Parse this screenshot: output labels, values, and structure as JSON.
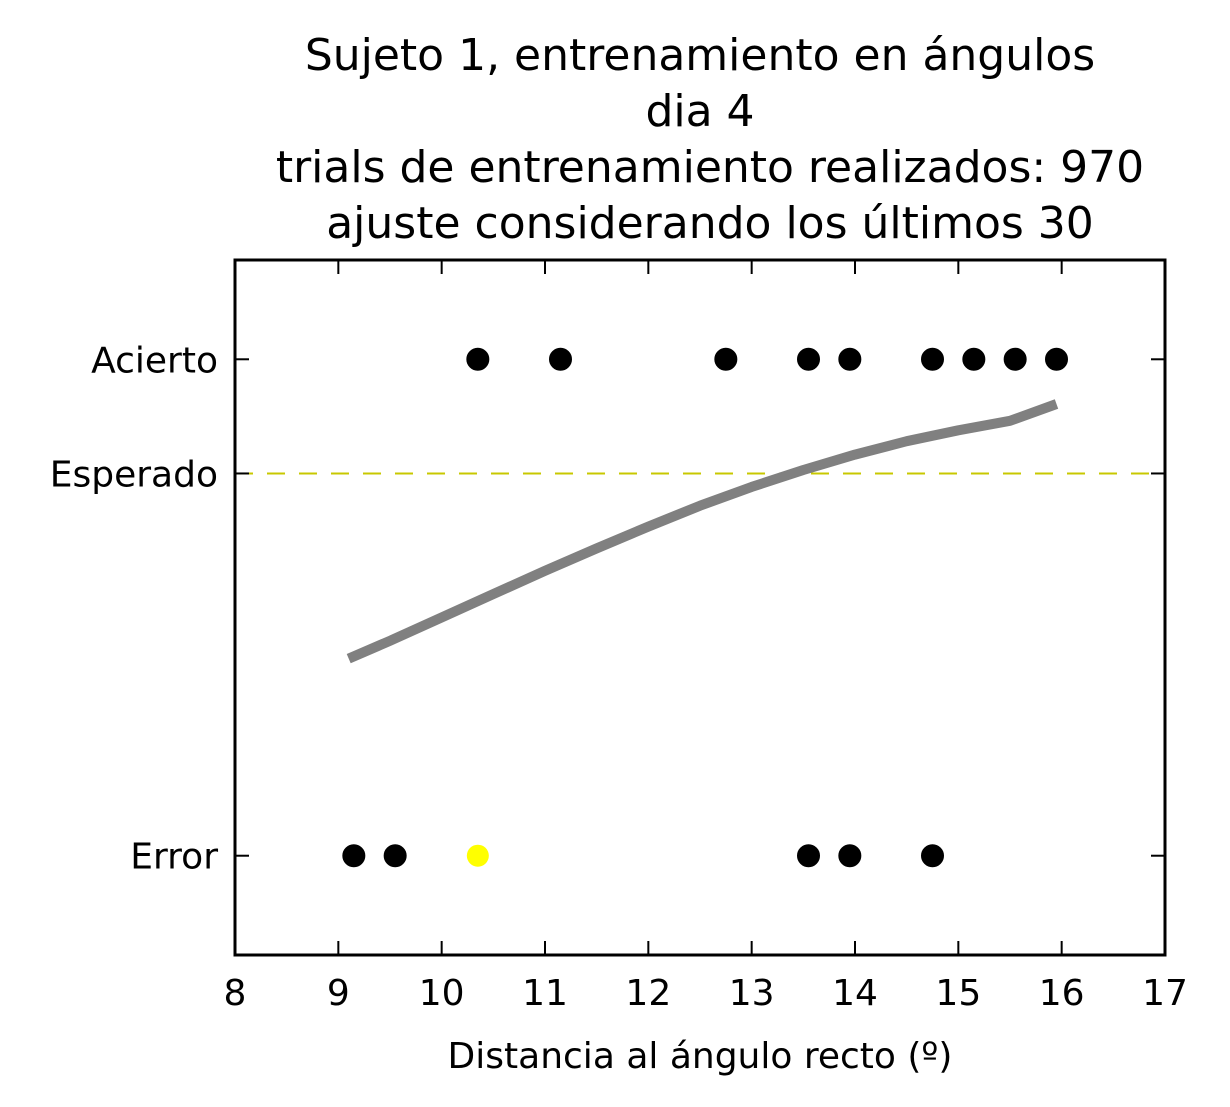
{
  "chart_data": {
    "type": "scatter",
    "title_lines": [
      "Sujeto 1, entrenamiento en ángulos",
      "dia 4",
      "trials de entrenamiento realizados: 970",
      "ajuste considerando los últimos 30"
    ],
    "xlabel": "Distancia al ángulo recto (º)",
    "ylabel": "",
    "xlim": [
      8,
      17
    ],
    "x_ticks": [
      8,
      9,
      10,
      11,
      12,
      13,
      14,
      15,
      16,
      17
    ],
    "ylim": [
      -0.2,
      1.2
    ],
    "y_ticks": [
      {
        "value": 0,
        "label": "Error"
      },
      {
        "value": 0.77,
        "label": "Esperado"
      },
      {
        "value": 1,
        "label": "Acierto"
      }
    ],
    "grid": false,
    "series": [
      {
        "marker": "circle",
        "color": "#000000",
        "points": [
          {
            "x": 10.35,
            "y": 1
          },
          {
            "x": 11.15,
            "y": 1
          },
          {
            "x": 12.75,
            "y": 1
          },
          {
            "x": 13.55,
            "y": 1
          },
          {
            "x": 13.95,
            "y": 1
          },
          {
            "x": 14.75,
            "y": 1
          },
          {
            "x": 15.15,
            "y": 1
          },
          {
            "x": 15.55,
            "y": 1
          },
          {
            "x": 15.95,
            "y": 1
          },
          {
            "x": 9.15,
            "y": 0
          },
          {
            "x": 9.55,
            "y": 0
          },
          {
            "x": 13.55,
            "y": 0
          },
          {
            "x": 13.95,
            "y": 0
          },
          {
            "x": 14.75,
            "y": 0
          }
        ]
      },
      {
        "marker": "circle",
        "color": "#ffff00",
        "points": [
          {
            "x": 10.35,
            "y": 0
          }
        ]
      }
    ],
    "fit_curve": {
      "type": "line",
      "color": "#808080",
      "x": [
        9.1,
        9.5,
        10.0,
        10.5,
        11.0,
        11.5,
        12.0,
        12.5,
        13.0,
        13.5,
        14.0,
        14.5,
        15.0,
        15.5,
        15.95
      ],
      "y": [
        0.397,
        0.433,
        0.48,
        0.527,
        0.574,
        0.619,
        0.663,
        0.705,
        0.743,
        0.777,
        0.808,
        0.835,
        0.857,
        0.876,
        0.91
      ]
    },
    "reference_line": {
      "label": "Esperado",
      "y": 0.77,
      "color": "#c8c800",
      "style": "dashed"
    }
  }
}
